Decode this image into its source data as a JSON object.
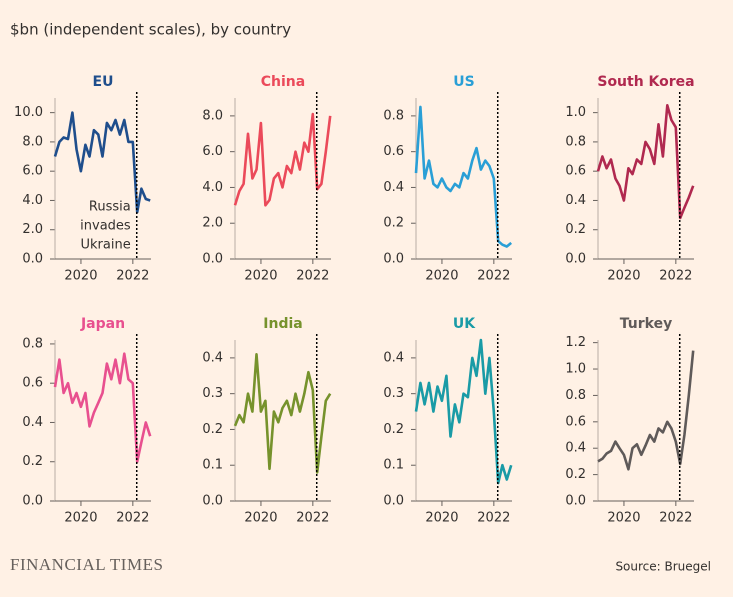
{
  "subtitle": "$bn (independent scales), by country",
  "brand": "FINANCIAL TIMES",
  "source": "Source: Bruegel",
  "chart_data": [
    {
      "type": "line",
      "title": "EU",
      "color": "#1f4e8c",
      "x": [
        2019,
        2019.17,
        2019.33,
        2019.5,
        2019.67,
        2019.83,
        2020,
        2020.17,
        2020.33,
        2020.5,
        2020.67,
        2020.83,
        2021,
        2021.17,
        2021.33,
        2021.5,
        2021.67,
        2021.83,
        2022,
        2022.17,
        2022.33,
        2022.5,
        2022.67
      ],
      "values": [
        7.0,
        8.0,
        8.3,
        8.2,
        10.0,
        7.5,
        6.0,
        7.8,
        7.0,
        8.8,
        8.5,
        7.0,
        9.3,
        8.8,
        9.5,
        8.5,
        9.5,
        8.0,
        8.0,
        3.2,
        4.8,
        4.1,
        4.0
      ],
      "xlim": [
        2019,
        2022.7
      ],
      "xticks": [
        2020,
        2022
      ],
      "ylim": [
        0,
        11
      ],
      "yticks": [
        {
          "value": 0,
          "label": "0.0"
        },
        {
          "value": 2,
          "label": "2.0"
        },
        {
          "value": 4,
          "label": "4.0"
        },
        {
          "value": 6,
          "label": "6.0"
        },
        {
          "value": 8,
          "label": "8.0"
        },
        {
          "value": 10,
          "label": "10.0"
        }
      ],
      "vline": 2022.15,
      "annotation": [
        "Russia",
        "invades",
        "Ukraine"
      ]
    },
    {
      "type": "line",
      "title": "China",
      "color": "#eb4a5a",
      "x": [
        2019,
        2019.17,
        2019.33,
        2019.5,
        2019.67,
        2019.83,
        2020,
        2020.17,
        2020.33,
        2020.5,
        2020.67,
        2020.83,
        2021,
        2021.17,
        2021.33,
        2021.5,
        2021.67,
        2021.83,
        2022,
        2022.17,
        2022.33,
        2022.5,
        2022.67
      ],
      "values": [
        3.0,
        3.8,
        4.2,
        7.0,
        4.5,
        5.0,
        7.6,
        3.0,
        3.3,
        4.5,
        4.8,
        4.0,
        5.2,
        4.8,
        6.0,
        5.0,
        6.5,
        6.0,
        8.1,
        3.9,
        4.2,
        6.0,
        8.0
      ],
      "xlim": [
        2019,
        2022.7
      ],
      "xticks": [
        2020,
        2022
      ],
      "ylim": [
        0,
        9
      ],
      "yticks": [
        {
          "value": 0,
          "label": "0.0"
        },
        {
          "value": 2,
          "label": "2.0"
        },
        {
          "value": 4,
          "label": "4.0"
        },
        {
          "value": 6,
          "label": "6.0"
        },
        {
          "value": 8,
          "label": "8.0"
        }
      ],
      "vline": 2022.15
    },
    {
      "type": "line",
      "title": "US",
      "color": "#2a9fd6",
      "x": [
        2019,
        2019.17,
        2019.33,
        2019.5,
        2019.67,
        2019.83,
        2020,
        2020.17,
        2020.33,
        2020.5,
        2020.67,
        2020.83,
        2021,
        2021.17,
        2021.33,
        2021.5,
        2021.67,
        2021.83,
        2022,
        2022.17,
        2022.33,
        2022.5,
        2022.67
      ],
      "values": [
        0.48,
        0.85,
        0.45,
        0.55,
        0.42,
        0.4,
        0.45,
        0.4,
        0.38,
        0.42,
        0.4,
        0.48,
        0.45,
        0.55,
        0.62,
        0.5,
        0.55,
        0.52,
        0.45,
        0.1,
        0.08,
        0.07,
        0.09
      ],
      "xlim": [
        2019,
        2022.7
      ],
      "xticks": [
        2020,
        2022
      ],
      "ylim": [
        0,
        0.9
      ],
      "yticks": [
        {
          "value": 0,
          "label": "0.0"
        },
        0.2,
        0.4,
        0.6,
        0.8
      ],
      "vline": 2022.15
    },
    {
      "type": "line",
      "title": "South Korea",
      "color": "#b0294f",
      "x": [
        2019,
        2019.17,
        2019.33,
        2019.5,
        2019.67,
        2019.83,
        2020,
        2020.17,
        2020.33,
        2020.5,
        2020.67,
        2020.83,
        2021,
        2021.17,
        2021.33,
        2021.5,
        2021.67,
        2021.83,
        2022,
        2022.17,
        2022.33,
        2022.5,
        2022.67
      ],
      "values": [
        0.6,
        0.7,
        0.62,
        0.68,
        0.55,
        0.5,
        0.4,
        0.62,
        0.58,
        0.68,
        0.65,
        0.8,
        0.75,
        0.65,
        0.92,
        0.7,
        1.05,
        0.95,
        0.9,
        0.28,
        0.35,
        0.42,
        0.5
      ],
      "xlim": [
        2019,
        2022.7
      ],
      "xticks": [
        2020,
        2022
      ],
      "ylim": [
        0,
        1.1
      ],
      "yticks": [
        {
          "value": 0,
          "label": "0.0"
        },
        0.2,
        0.4,
        0.6,
        0.8,
        {
          "value": 1,
          "label": "1.0"
        }
      ],
      "vline": 2022.15
    },
    {
      "type": "line",
      "title": "Japan",
      "color": "#e8508f",
      "x": [
        2019,
        2019.17,
        2019.33,
        2019.5,
        2019.67,
        2019.83,
        2020,
        2020.17,
        2020.33,
        2020.5,
        2020.67,
        2020.83,
        2021,
        2021.17,
        2021.33,
        2021.5,
        2021.67,
        2021.83,
        2022,
        2022.17,
        2022.33,
        2022.5,
        2022.67
      ],
      "values": [
        0.58,
        0.72,
        0.55,
        0.6,
        0.5,
        0.55,
        0.48,
        0.55,
        0.38,
        0.45,
        0.5,
        0.55,
        0.7,
        0.62,
        0.72,
        0.6,
        0.75,
        0.62,
        0.6,
        0.2,
        0.3,
        0.4,
        0.33
      ],
      "xlim": [
        2019,
        2022.7
      ],
      "xticks": [
        2020,
        2022
      ],
      "ylim": [
        0,
        0.82
      ],
      "yticks": [
        {
          "value": 0,
          "label": "0.0"
        },
        0.2,
        0.4,
        0.6,
        0.8
      ],
      "vline": 2022.15
    },
    {
      "type": "line",
      "title": "India",
      "color": "#76922c",
      "x": [
        2019,
        2019.17,
        2019.33,
        2019.5,
        2019.67,
        2019.83,
        2020,
        2020.17,
        2020.33,
        2020.5,
        2020.67,
        2020.83,
        2021,
        2021.17,
        2021.33,
        2021.5,
        2021.67,
        2021.83,
        2022,
        2022.17,
        2022.33,
        2022.5,
        2022.67
      ],
      "values": [
        0.21,
        0.24,
        0.22,
        0.3,
        0.25,
        0.41,
        0.25,
        0.28,
        0.09,
        0.25,
        0.22,
        0.26,
        0.28,
        0.24,
        0.3,
        0.25,
        0.3,
        0.36,
        0.31,
        0.08,
        0.18,
        0.28,
        0.3
      ],
      "xlim": [
        2019,
        2022.7
      ],
      "xticks": [
        2020,
        2022
      ],
      "ylim": [
        0,
        0.45
      ],
      "yticks": [
        {
          "value": 0,
          "label": "0.0"
        },
        0.1,
        0.2,
        0.3,
        0.4
      ],
      "vline": 2022.15
    },
    {
      "type": "line",
      "title": "UK",
      "color": "#1a9ba6",
      "x": [
        2019,
        2019.17,
        2019.33,
        2019.5,
        2019.67,
        2019.83,
        2020,
        2020.17,
        2020.33,
        2020.5,
        2020.67,
        2020.83,
        2021,
        2021.17,
        2021.33,
        2021.5,
        2021.67,
        2021.83,
        2022,
        2022.17,
        2022.33,
        2022.5,
        2022.67
      ],
      "values": [
        0.25,
        0.33,
        0.27,
        0.33,
        0.25,
        0.32,
        0.28,
        0.35,
        0.18,
        0.27,
        0.22,
        0.3,
        0.29,
        0.4,
        0.35,
        0.45,
        0.3,
        0.4,
        0.25,
        0.05,
        0.1,
        0.06,
        0.1
      ],
      "xlim": [
        2019,
        2022.7
      ],
      "xticks": [
        2020,
        2022
      ],
      "ylim": [
        0,
        0.45
      ],
      "yticks": [
        {
          "value": 0,
          "label": "0.0"
        },
        0.1,
        0.2,
        0.3,
        0.4
      ],
      "vline": 2022.15
    },
    {
      "type": "line",
      "title": "Turkey",
      "color": "#5f5a59",
      "x": [
        2019,
        2019.17,
        2019.33,
        2019.5,
        2019.67,
        2019.83,
        2020,
        2020.17,
        2020.33,
        2020.5,
        2020.67,
        2020.83,
        2021,
        2021.17,
        2021.33,
        2021.5,
        2021.67,
        2021.83,
        2022,
        2022.17,
        2022.33,
        2022.5,
        2022.67
      ],
      "values": [
        0.3,
        0.32,
        0.36,
        0.38,
        0.45,
        0.4,
        0.35,
        0.24,
        0.4,
        0.43,
        0.35,
        0.42,
        0.5,
        0.45,
        0.55,
        0.52,
        0.6,
        0.55,
        0.45,
        0.28,
        0.5,
        0.8,
        1.14
      ],
      "xlim": [
        2019,
        2022.7
      ],
      "xticks": [
        2020,
        2022
      ],
      "ylim": [
        0,
        1.22
      ],
      "yticks": [
        {
          "value": 0,
          "label": "0.0"
        },
        0.2,
        0.4,
        0.6,
        0.8,
        {
          "value": 1,
          "label": "1.0"
        },
        1.2
      ],
      "vline": 2022.15
    }
  ]
}
